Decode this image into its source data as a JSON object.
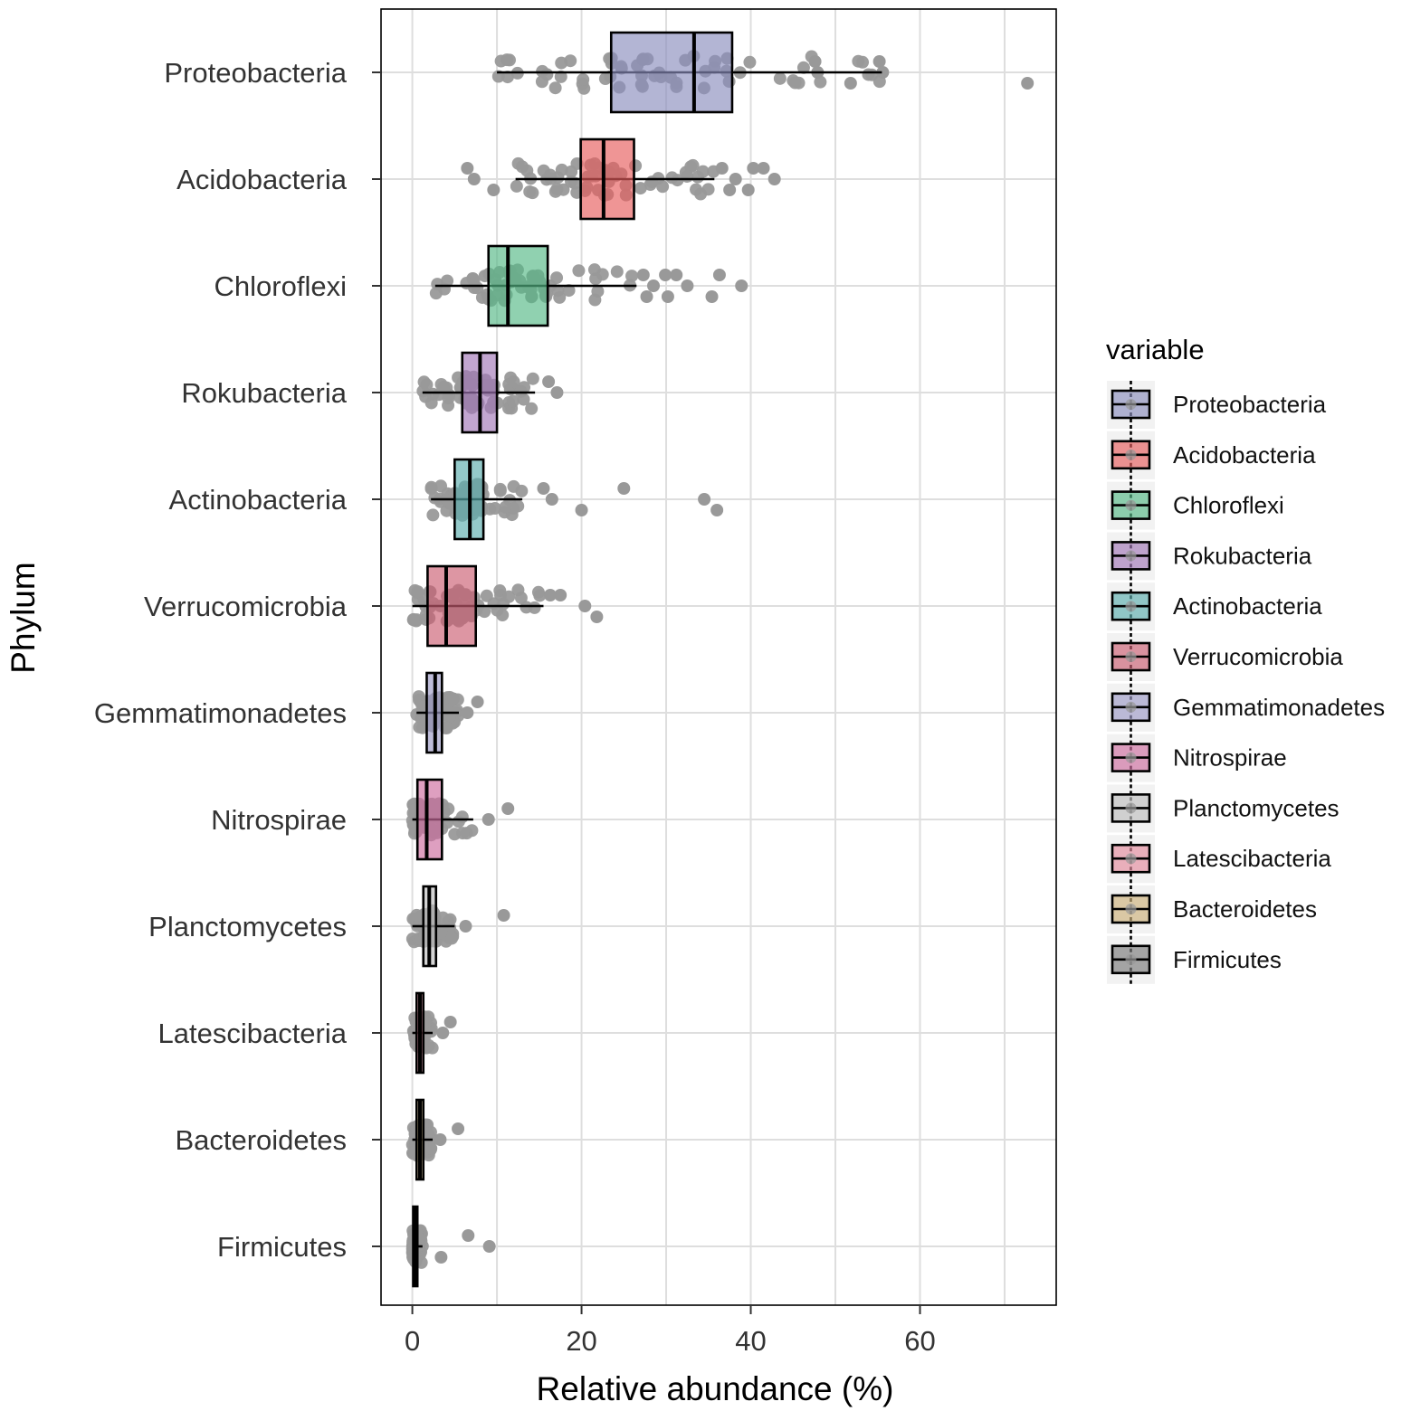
{
  "chart_data": {
    "type": "boxplot",
    "orientation": "horizontal",
    "xlabel": "Relative abundance  (%)",
    "ylabel": "Phylum",
    "xlim": [
      -3.7,
      76.1
    ],
    "xticks": [
      0,
      20,
      40,
      60
    ],
    "xgrid": [
      0,
      10,
      20,
      30,
      40,
      50,
      60,
      70
    ],
    "grid": true,
    "legend": {
      "title": "variable",
      "position": "right"
    },
    "point_color": "#999999",
    "series": [
      {
        "name": "Firmicutes",
        "display": "Firmicutes",
        "color": "#7a7a7a",
        "q1": 0.1,
        "median": 0.3,
        "q3": 0.6,
        "wmin": 0.0,
        "wmax": 1.2,
        "outliers": [
          6.6,
          9.1,
          3.4
        ]
      },
      {
        "name": "Bacteroidetes",
        "display": "Bacteroidetes",
        "color": "#cdb079",
        "q1": 0.5,
        "median": 0.9,
        "q3": 1.3,
        "wmin": 0.0,
        "wmax": 2.4,
        "outliers": [
          5.4,
          3.3
        ]
      },
      {
        "name": "Latescibacteria",
        "display": "Latescibacteria",
        "color": "#e38b9c",
        "q1": 0.5,
        "median": 0.9,
        "q3": 1.3,
        "wmin": 0.0,
        "wmax": 2.4,
        "outliers": [
          4.5,
          3.6
        ]
      },
      {
        "name": "Planctomycetes",
        "display": "Planctomycetes",
        "color": "#bdbdbd",
        "q1": 1.3,
        "median": 2.0,
        "q3": 2.8,
        "wmin": 0.0,
        "wmax": 5.0,
        "outliers": [
          10.8,
          6.3
        ]
      },
      {
        "name": "Nitrospirae",
        "display": "Nitrospirae",
        "color": "#cc6b9e",
        "q1": 0.6,
        "median": 1.7,
        "q3": 3.5,
        "wmin": 0.0,
        "wmax": 7.2,
        "outliers": [
          11.3,
          9.0
        ]
      },
      {
        "name": "Gemmatimonadetes",
        "display": "Gemmatimonadetes",
        "color": "#9d9ac6",
        "q1": 1.7,
        "median": 2.7,
        "q3": 3.5,
        "wmin": 0.5,
        "wmax": 5.5,
        "outliers": [
          7.7,
          6.5
        ]
      },
      {
        "name": "Verrucomicrobia",
        "display": "Verrucomicrobia",
        "color": "#cb5e72",
        "q1": 1.8,
        "median": 4.0,
        "q3": 7.5,
        "wmin": 0.0,
        "wmax": 15.5,
        "outliers": [
          17.5,
          20.4,
          21.8,
          16.3
        ]
      },
      {
        "name": "Actinobacteria",
        "display": "Actinobacteria",
        "color": "#5aaeae",
        "q1": 5.0,
        "median": 6.8,
        "q3": 8.4,
        "wmin": 2.2,
        "wmax": 13.0,
        "outliers": [
          15.5,
          16.5,
          20.0,
          25.0,
          34.5,
          36.0
        ]
      },
      {
        "name": "Rokubacteria",
        "display": "Rokubacteria",
        "color": "#a277b7",
        "q1": 5.9,
        "median": 8.0,
        "q3": 10.0,
        "wmin": 1.2,
        "wmax": 14.5,
        "outliers": [
          16.1,
          17.1
        ]
      },
      {
        "name": "Chloroflexi",
        "display": "Chloroflexi",
        "color": "#54b886",
        "q1": 9.0,
        "median": 11.3,
        "q3": 16.0,
        "wmin": 2.7,
        "wmax": 26.5,
        "outliers": [
          27.3,
          28.5,
          30.2,
          31.2,
          32.5,
          35.4,
          36.3,
          38.9,
          27.7,
          29.9
        ]
      },
      {
        "name": "Acidobacteria",
        "display": "Acidobacteria",
        "color": "#e65c5c",
        "q1": 19.9,
        "median": 22.6,
        "q3": 26.2,
        "wmin": 12.2,
        "wmax": 35.7,
        "outliers": [
          6.5,
          7.3,
          9.6,
          36.6,
          38.2,
          39.7,
          41.5,
          42.8,
          37.5,
          40.3
        ]
      },
      {
        "name": "Proteobacteria",
        "display": "Proteobacteria",
        "color": "#8a8ebd",
        "q1": 23.5,
        "median": 33.3,
        "q3": 37.8,
        "wmin": 10.0,
        "wmax": 55.5,
        "outliers": [
          47.6,
          47.9,
          51.8,
          55.2,
          55.6,
          72.7
        ]
      }
    ],
    "legend_order": [
      "Proteobacteria",
      "Acidobacteria",
      "Chloroflexi",
      "Rokubacteria",
      "Actinobacteria",
      "Verrucomicrobia",
      "Gemmatimonadetes",
      "Nitrospirae",
      "Planctomycetes",
      "Latescibacteria",
      "Bacteroidetes",
      "Firmicutes"
    ]
  }
}
